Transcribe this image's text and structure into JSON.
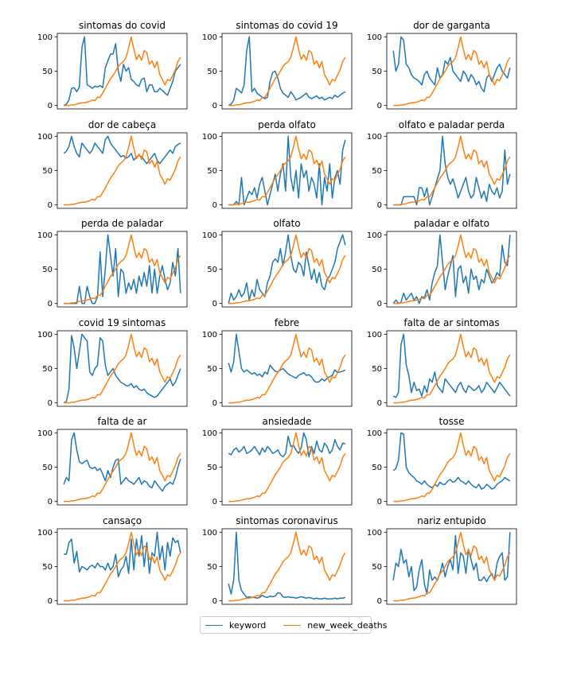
{
  "chart_data": {
    "type": "line",
    "layout": "grid of small multiples, 6 rows x 3 columns",
    "ylim": [
      0,
      100
    ],
    "yticks": [
      0,
      50,
      100
    ],
    "xticks_shown": false,
    "grid": false,
    "legend": {
      "placement": "bottom-center",
      "entries": [
        "keyword",
        "new_week_deaths"
      ]
    },
    "colors": {
      "keyword": "#1f77b4",
      "new_week_deaths": "#ff7f0e"
    },
    "reference_series": {
      "name": "new_week_deaths",
      "values": [
        0,
        0,
        0,
        1,
        1,
        2,
        3,
        4,
        4,
        5,
        6,
        8,
        7,
        12,
        12,
        18,
        25,
        32,
        39,
        44,
        50,
        57,
        61,
        64,
        70,
        84,
        100,
        82,
        67,
        74,
        66,
        80,
        77,
        60,
        65,
        55,
        64,
        45,
        38,
        30,
        38,
        36,
        44,
        52,
        64,
        70
      ]
    },
    "panels": [
      {
        "title": "sintomas do covid",
        "keyword": [
          0,
          2,
          8,
          25,
          26,
          20,
          27,
          85,
          100,
          30,
          28,
          25,
          28,
          27,
          29,
          26,
          55,
          65,
          75,
          75,
          90,
          50,
          35,
          60,
          50,
          55,
          38,
          35,
          30,
          28,
          38,
          40,
          20,
          30,
          30,
          20,
          20,
          25,
          22,
          18,
          15,
          25,
          35,
          50,
          55,
          60
        ]
      },
      {
        "title": "sintomas do covid 19",
        "keyword": [
          0,
          2,
          8,
          25,
          22,
          18,
          30,
          80,
          100,
          20,
          25,
          18,
          15,
          12,
          10,
          12,
          35,
          48,
          50,
          40,
          25,
          18,
          15,
          12,
          20,
          15,
          8,
          10,
          12,
          15,
          18,
          12,
          10,
          12,
          14,
          10,
          12,
          8,
          10,
          12,
          10,
          15,
          12,
          15,
          18,
          20
        ]
      },
      {
        "title": "dor de garganta",
        "keyword": [
          80,
          50,
          60,
          100,
          95,
          60,
          55,
          45,
          40,
          38,
          35,
          30,
          45,
          50,
          40,
          35,
          30,
          55,
          40,
          45,
          65,
          60,
          70,
          50,
          45,
          40,
          35,
          50,
          45,
          35,
          45,
          40,
          30,
          35,
          25,
          20,
          40,
          45,
          35,
          45,
          55,
          60,
          50,
          45,
          40,
          55
        ]
      },
      {
        "title": "dor de cabeça",
        "keyword": [
          75,
          78,
          85,
          100,
          85,
          75,
          70,
          90,
          85,
          80,
          75,
          80,
          90,
          85,
          80,
          75,
          95,
          100,
          90,
          85,
          80,
          75,
          70,
          72,
          68,
          70,
          75,
          65,
          70,
          72,
          70,
          65,
          60,
          65,
          70,
          75,
          65,
          60,
          65,
          70,
          75,
          80,
          75,
          85,
          88,
          90
        ]
      },
      {
        "title": "perda olfato",
        "keyword": [
          0,
          0,
          0,
          5,
          0,
          40,
          0,
          10,
          20,
          15,
          25,
          10,
          30,
          40,
          20,
          0,
          15,
          30,
          45,
          20,
          45,
          60,
          20,
          100,
          40,
          20,
          50,
          10,
          60,
          40,
          50,
          20,
          40,
          30,
          10,
          60,
          0,
          40,
          20,
          60,
          10,
          40,
          50,
          30,
          80,
          95
        ]
      },
      {
        "title": "olfato e paladar perda",
        "keyword": [
          0,
          0,
          0,
          0,
          12,
          12,
          12,
          12,
          12,
          0,
          25,
          25,
          12,
          25,
          0,
          12,
          25,
          38,
          50,
          100,
          60,
          40,
          30,
          38,
          25,
          10,
          20,
          30,
          40,
          20,
          10,
          15,
          40,
          25,
          10,
          20,
          5,
          30,
          20,
          15,
          25,
          10,
          20,
          80,
          30,
          45
        ]
      },
      {
        "title": "perda de paladar",
        "keyword": [
          0,
          0,
          0,
          0,
          0,
          0,
          25,
          0,
          0,
          25,
          10,
          0,
          0,
          10,
          75,
          10,
          50,
          100,
          70,
          40,
          80,
          10,
          50,
          45,
          15,
          30,
          20,
          35,
          15,
          40,
          25,
          45,
          25,
          55,
          15,
          50,
          15,
          40,
          55,
          35,
          20,
          30,
          60,
          40,
          80,
          15
        ]
      },
      {
        "title": "olfato",
        "keyword": [
          0,
          15,
          5,
          10,
          20,
          10,
          15,
          30,
          5,
          20,
          10,
          35,
          20,
          15,
          10,
          30,
          40,
          60,
          65,
          60,
          80,
          55,
          75,
          100,
          70,
          50,
          45,
          60,
          55,
          40,
          75,
          55,
          35,
          50,
          30,
          45,
          25,
          20,
          35,
          40,
          50,
          60,
          80,
          90,
          100,
          85
        ]
      },
      {
        "title": "paladar e olfato",
        "keyword": [
          0,
          5,
          0,
          2,
          15,
          5,
          10,
          15,
          5,
          10,
          0,
          10,
          8,
          20,
          5,
          30,
          45,
          55,
          100,
          60,
          20,
          40,
          55,
          70,
          10,
          50,
          55,
          30,
          40,
          15,
          50,
          35,
          40,
          20,
          35,
          30,
          50,
          40,
          30,
          35,
          45,
          40,
          85,
          60,
          55,
          100
        ]
      },
      {
        "title": "covid 19 sintomas",
        "keyword": [
          0,
          2,
          20,
          98,
          80,
          50,
          75,
          100,
          95,
          90,
          45,
          40,
          50,
          55,
          95,
          90,
          55,
          40,
          45,
          50,
          40,
          35,
          30,
          28,
          25,
          25,
          28,
          22,
          25,
          20,
          18,
          20,
          15,
          12,
          10,
          8,
          10,
          15,
          20,
          25,
          30,
          35,
          25,
          30,
          40,
          50
        ]
      },
      {
        "title": "febre",
        "keyword": [
          58,
          45,
          60,
          100,
          75,
          50,
          45,
          48,
          45,
          42,
          44,
          40,
          42,
          38,
          45,
          42,
          55,
          50,
          46,
          45,
          48,
          50,
          46,
          42,
          40,
          38,
          36,
          40,
          42,
          44,
          40,
          41,
          38,
          32,
          30,
          31,
          35,
          32,
          36,
          38,
          40,
          48,
          44,
          45,
          46,
          48
        ]
      },
      {
        "title": "falta de ar sintomas",
        "keyword": [
          10,
          8,
          15,
          85,
          100,
          55,
          40,
          15,
          30,
          18,
          20,
          10,
          25,
          15,
          35,
          30,
          45,
          25,
          20,
          15,
          35,
          30,
          25,
          20,
          15,
          25,
          30,
          20,
          15,
          25,
          22,
          18,
          20,
          25,
          15,
          20,
          30,
          25,
          20,
          15,
          22,
          30,
          25,
          20,
          15,
          10
        ]
      },
      {
        "title": "falta de ar",
        "keyword": [
          25,
          35,
          30,
          90,
          100,
          75,
          58,
          55,
          58,
          60,
          50,
          48,
          50,
          45,
          48,
          40,
          30,
          45,
          35,
          50,
          60,
          62,
          25,
          30,
          35,
          30,
          28,
          25,
          30,
          35,
          25,
          30,
          28,
          22,
          20,
          30,
          25,
          20,
          15,
          22,
          25,
          28,
          25,
          35,
          50,
          62
        ]
      },
      {
        "title": "ansiedade",
        "keyword": [
          70,
          68,
          75,
          78,
          72,
          75,
          80,
          70,
          72,
          75,
          80,
          74,
          68,
          78,
          72,
          80,
          76,
          70,
          72,
          75,
          68,
          65,
          70,
          95,
          80,
          82,
          75,
          70,
          78,
          100,
          90,
          65,
          80,
          70,
          88,
          75,
          72,
          85,
          80,
          70,
          75,
          90,
          80,
          75,
          85,
          84
        ]
      },
      {
        "title": "tosse",
        "keyword": [
          45,
          48,
          60,
          100,
          98,
          50,
          42,
          38,
          35,
          30,
          28,
          25,
          30,
          25,
          22,
          20,
          25,
          22,
          28,
          25,
          25,
          30,
          32,
          28,
          30,
          35,
          30,
          28,
          25,
          30,
          25,
          22,
          20,
          25,
          18,
          20,
          25,
          22,
          18,
          20,
          25,
          28,
          30,
          35,
          32,
          30
        ]
      },
      {
        "title": "cansaço",
        "keyword": [
          68,
          68,
          85,
          90,
          55,
          72,
          42,
          50,
          48,
          45,
          50,
          52,
          48,
          55,
          50,
          50,
          45,
          55,
          45,
          50,
          68,
          35,
          45,
          50,
          65,
          40,
          90,
          45,
          90,
          65,
          95,
          50,
          85,
          40,
          70,
          65,
          100,
          60,
          80,
          45,
          85,
          65,
          92,
          85,
          88,
          70
        ]
      },
      {
        "title": "sintomas coronavirus",
        "keyword": [
          25,
          10,
          30,
          100,
          30,
          15,
          10,
          5,
          6,
          5,
          5,
          4,
          5,
          8,
          6,
          5,
          7,
          6,
          7,
          12,
          11,
          6,
          5,
          6,
          5,
          5,
          4,
          5,
          6,
          5,
          4,
          5,
          4,
          3,
          4,
          3,
          3,
          4,
          3,
          3,
          3,
          4,
          3,
          4,
          4,
          5
        ]
      },
      {
        "title": "nariz entupido",
        "keyword": [
          30,
          55,
          50,
          75,
          55,
          60,
          35,
          50,
          15,
          20,
          45,
          60,
          25,
          10,
          45,
          30,
          35,
          30,
          40,
          55,
          35,
          50,
          60,
          45,
          95,
          40,
          70,
          65,
          40,
          75,
          60,
          45,
          55,
          30,
          30,
          35,
          28,
          35,
          40,
          30,
          55,
          65,
          70,
          30,
          35,
          100
        ]
      }
    ]
  }
}
